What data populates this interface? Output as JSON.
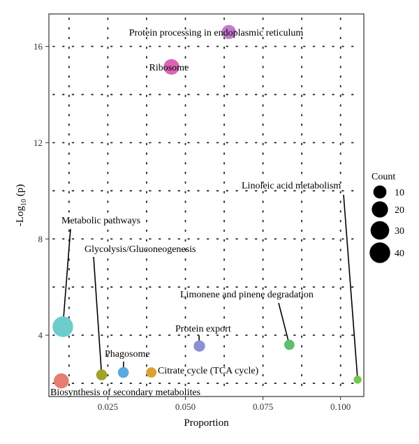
{
  "chart_data": {
    "type": "scatter",
    "xlabel": "Proportion",
    "ylabel": "-Log10 (p)",
    "ylabel_parts": {
      "prefix": "-Log",
      "sub": "10",
      "suffix": " (p)"
    },
    "xlim": [
      0.006,
      0.1075
    ],
    "ylim": [
      1.45,
      17.35
    ],
    "x_ticks": [
      {
        "value": 0.025,
        "label": "0.025"
      },
      {
        "value": 0.05,
        "label": "0.050"
      },
      {
        "value": 0.075,
        "label": "0.075"
      },
      {
        "value": 0.1,
        "label": "0.100"
      }
    ],
    "y_ticks": [
      {
        "value": 4,
        "label": "4"
      },
      {
        "value": 8,
        "label": "8"
      },
      {
        "value": 12,
        "label": "12"
      },
      {
        "value": 16,
        "label": "16"
      }
    ],
    "x_minor_grid": [
      0.0125,
      0.0375,
      0.0625,
      0.0875
    ],
    "y_minor_grid": [
      2,
      6,
      10,
      14
    ],
    "grid": "dotted",
    "points": [
      {
        "label": "Protein processing in endoplasmic reticulum",
        "x": 0.064,
        "y": 16.6,
        "count": 13,
        "color": "#c27bcc"
      },
      {
        "label": "Ribosome",
        "x": 0.0455,
        "y": 15.15,
        "count": 18,
        "color": "#db64b6"
      },
      {
        "label": "Linoleic acid metabolism",
        "x": 0.1055,
        "y": 2.15,
        "count": 1,
        "color": "#75c84e"
      },
      {
        "label": "Metabolic pathways",
        "x": 0.0105,
        "y": 4.35,
        "count": 40,
        "color": "#6dcccc"
      },
      {
        "label": "Glycolysis/Gluconeogenesis",
        "x": 0.023,
        "y": 2.35,
        "count": 5,
        "color": "#a2a229"
      },
      {
        "label": "Limonene and pinene degradation",
        "x": 0.0835,
        "y": 3.6,
        "count": 4,
        "color": "#5dbf70"
      },
      {
        "label": "Protein export",
        "x": 0.0545,
        "y": 3.55,
        "count": 6,
        "color": "#8f8fd3"
      },
      {
        "label": "Phagosome",
        "x": 0.03,
        "y": 2.45,
        "count": 5,
        "color": "#5ca8e2"
      },
      {
        "label": "Citrate cycle (TCA cycle)",
        "x": 0.039,
        "y": 2.45,
        "count": 4,
        "color": "#d9a233"
      },
      {
        "label": "Biosynthesis of secondary metabolites",
        "x": 0.01,
        "y": 2.1,
        "count": 16,
        "color": "#e67c73"
      }
    ],
    "legend": {
      "title": "Count",
      "placement": "right",
      "entries": [
        {
          "label": "10",
          "count": 10
        },
        {
          "label": "20",
          "count": 20
        },
        {
          "label": "30",
          "count": 30
        },
        {
          "label": "40",
          "count": 40
        }
      ]
    }
  }
}
